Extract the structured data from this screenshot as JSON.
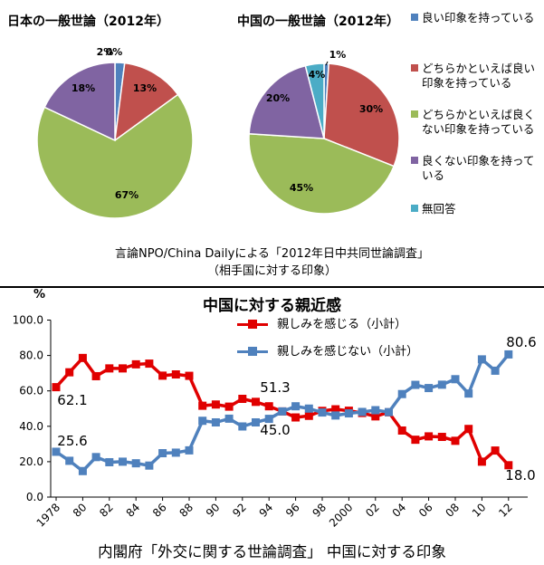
{
  "pies": {
    "left_title": "日本の一般世論（2012年）",
    "right_title": "中国の一般世論（2012年）",
    "legend": [
      {
        "label": "良い印象を持っている",
        "color": "#4f81bd"
      },
      {
        "label": "どちらかといえば良い印象を持っている",
        "color": "#c0504d"
      },
      {
        "label": "どちらかといえば良くない印象を持っている",
        "color": "#9bbb59"
      },
      {
        "label": "良くない印象を持っている",
        "color": "#8064a2"
      },
      {
        "label": "無回答",
        "color": "#4bacc6"
      }
    ],
    "caption_line1": "言論NPO/China Dailyによる「2012年日中共同世論調査」",
    "caption_line2": "（相手国に対する印象）"
  },
  "line": {
    "title": "中国に対する親近感",
    "unit_label": "%",
    "legend_red": "親しみを感じる（小計）",
    "legend_blue": "親しみを感じない（小計）",
    "caption": "内閣府「外交に関する世論調査」 中国に対する印象",
    "y_tick_labels": [
      "0.0",
      "20.0",
      "40.0",
      "60.0",
      "80.0",
      "100.0"
    ],
    "x_tick_labels": [
      "1978",
      "80",
      "82",
      "84",
      "86",
      "88",
      "90",
      "92",
      "94",
      "96",
      "98",
      "2000",
      "02",
      "04",
      "06",
      "08",
      "10",
      "12"
    ],
    "annotations": [
      "62.1",
      "25.6",
      "51.3",
      "45.0",
      "80.6",
      "18.0"
    ]
  },
  "chart_data": [
    {
      "type": "pie",
      "title": "日本の一般世論（2012年）",
      "labels": [
        "良い印象を持っている",
        "どちらかといえば良い印象を持っている",
        "どちらかといえば良くない印象を持っている",
        "良くない印象を持っている",
        "無回答"
      ],
      "values": [
        2,
        13,
        67,
        18,
        0
      ],
      "value_labels": [
        "2%",
        "13%",
        "67%",
        "18%",
        "0%"
      ]
    },
    {
      "type": "pie",
      "title": "中国の一般世論（2012年）",
      "labels": [
        "良い印象を持っている",
        "どちらかといえば良い印象を持っている",
        "どちらかといえば良くない印象を持っている",
        "良くない印象を持っている",
        "無回答"
      ],
      "values": [
        1,
        30,
        45,
        20,
        4
      ],
      "value_labels": [
        "1%",
        "30%",
        "45%",
        "20%",
        "4%"
      ]
    },
    {
      "type": "line",
      "title": "中国に対する親近感",
      "x": [
        1978,
        1979,
        1980,
        1981,
        1982,
        1983,
        1984,
        1985,
        1986,
        1987,
        1988,
        1989,
        1990,
        1991,
        1992,
        1993,
        1994,
        1995,
        1996,
        1997,
        1998,
        1999,
        2000,
        2001,
        2002,
        2003,
        2004,
        2005,
        2006,
        2007,
        2008,
        2009,
        2010,
        2011,
        2012
      ],
      "ylim": [
        0,
        100
      ],
      "series": [
        {
          "name": "親しみを感じる（小計）",
          "color": "#e00000",
          "values": [
            62.1,
            70.5,
            78.6,
            68.3,
            72.7,
            72.7,
            75.0,
            75.4,
            68.6,
            69.3,
            68.5,
            51.6,
            52.3,
            51.1,
            55.5,
            53.8,
            51.3,
            48.4,
            45.0,
            45.9,
            48.7,
            49.6,
            48.8,
            47.5,
            45.6,
            47.9,
            37.6,
            32.4,
            34.3,
            34.0,
            31.8,
            38.5,
            20.0,
            26.3,
            18.0
          ]
        },
        {
          "name": "親しみを感じない（小計）",
          "color": "#4f81bd",
          "values": [
            25.6,
            20.5,
            14.7,
            22.6,
            19.7,
            20.0,
            19.1,
            17.8,
            24.8,
            25.1,
            26.4,
            43.1,
            42.2,
            44.3,
            39.9,
            42.2,
            44.2,
            48.4,
            51.3,
            50.0,
            47.8,
            46.1,
            47.3,
            48.1,
            49.1,
            48.0,
            58.2,
            63.4,
            61.6,
            63.5,
            66.6,
            58.5,
            77.8,
            71.4,
            80.6
          ]
        }
      ]
    }
  ]
}
